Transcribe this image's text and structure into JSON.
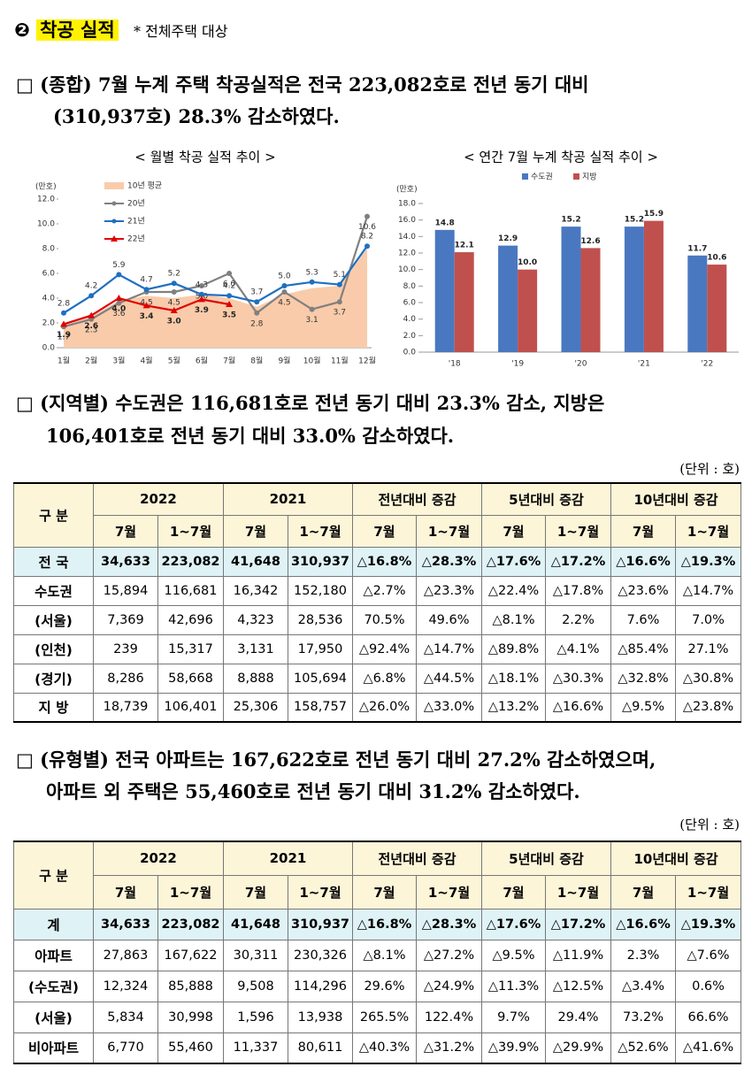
{
  "header": {
    "number": "❷",
    "title": "착공 실적",
    "note": "* 전체주택 대상"
  },
  "para1": [
    "□ (종합) 7월 누계 주택 착공실적은 전국 223,082호로 전년 동기 대비",
    "(310,937호) 28.3% 감소하였다."
  ],
  "chart_data": [
    {
      "type": "line",
      "title": "< 월별 착공 실적 추이 >",
      "y_label": "(만호)",
      "categories": [
        "1월",
        "2월",
        "3월",
        "4월",
        "5월",
        "6월",
        "7월",
        "8월",
        "9월",
        "10월",
        "11월",
        "12월"
      ],
      "ylim": [
        0,
        12
      ],
      "yticks": [
        {
          "value": 0,
          "label": "0.0"
        },
        {
          "value": 2,
          "label": "2.0"
        },
        {
          "value": 4,
          "label": "4.0"
        },
        {
          "value": 6,
          "label": "6.0"
        },
        {
          "value": 8,
          "label": "8.0"
        },
        {
          "value": 10,
          "label": "10.0"
        },
        {
          "value": 12,
          "label": "12.0"
        }
      ],
      "series": [
        {
          "name": "10년 평균",
          "style": "area",
          "color": "#f9cbaa",
          "values": [
            1.8,
            2.5,
            3.8,
            4.2,
            4.0,
            4.3,
            4.0,
            3.3,
            4.3,
            4.8,
            5.0,
            8.0
          ]
        },
        {
          "name": "20년",
          "style": "line",
          "marker": "circle",
          "color": "#808080",
          "values": [
            1.7,
            2.3,
            3.6,
            4.5,
            4.5,
            5.0,
            6.0,
            2.8,
            4.5,
            3.1,
            3.7,
            10.6
          ],
          "value_labels": [
            "1.7",
            "2.3",
            "3.6",
            "4.5",
            "4.5",
            "5.0",
            "6.0",
            "2.8",
            "4.5",
            "3.1",
            "3.7",
            "10.6"
          ]
        },
        {
          "name": "21년",
          "style": "line",
          "marker": "circle",
          "color": "#1f6fc0",
          "values": [
            2.8,
            4.2,
            5.9,
            4.7,
            5.2,
            4.3,
            4.2,
            3.7,
            5.0,
            5.3,
            5.1,
            8.2
          ],
          "value_labels": [
            "2.8",
            "4.2",
            "5.9",
            "4.7",
            "5.2",
            "4.3",
            "4.2",
            "3.7",
            "5.0",
            "5.3",
            "5.1",
            "8.2"
          ]
        },
        {
          "name": "22년",
          "style": "line",
          "marker": "triangle",
          "color": "#e00000",
          "values": [
            1.9,
            2.6,
            4.0,
            3.4,
            3.0,
            3.9,
            3.5,
            null,
            null,
            null,
            null,
            null
          ],
          "value_labels": [
            "1.9",
            "2.6",
            "4.0",
            "3.4",
            "3.0",
            "3.9",
            "3.5",
            null,
            null,
            null,
            null,
            null
          ]
        }
      ]
    },
    {
      "type": "bar",
      "title": "< 연간 7월 누계 착공 실적 추이 >",
      "y_label": "(만호)",
      "categories": [
        "'18",
        "'19",
        "'20",
        "'21",
        "'22"
      ],
      "ylim": [
        0,
        18
      ],
      "yticks": [
        {
          "value": 0,
          "label": "0.0"
        },
        {
          "value": 2,
          "label": "2.0"
        },
        {
          "value": 4,
          "label": "4.0"
        },
        {
          "value": 6,
          "label": "6.0"
        },
        {
          "value": 8,
          "label": "8.0"
        },
        {
          "value": 10,
          "label": "10.0"
        },
        {
          "value": 12,
          "label": "12.0"
        },
        {
          "value": 14,
          "label": "14.0"
        },
        {
          "value": 16,
          "label": "16.0"
        },
        {
          "value": 18,
          "label": "18.0"
        }
      ],
      "series": [
        {
          "name": "수도권",
          "color": "#4a78c0",
          "values": [
            14.8,
            12.9,
            15.2,
            15.2,
            11.7
          ],
          "value_labels": [
            "14.8",
            "12.9",
            "15.2",
            "15.2",
            "11.7"
          ]
        },
        {
          "name": "지방",
          "color": "#c0504d",
          "values": [
            12.1,
            10.0,
            12.6,
            15.9,
            10.6
          ],
          "value_labels": [
            "12.1",
            "10.0",
            "12.6",
            "15.9",
            "10.6"
          ]
        }
      ]
    }
  ],
  "para2": [
    "□ (지역별) 수도권은 116,681호로 전년 동기 대비 23.3% 감소, 지방은",
    "106,401호로 전년 동기 대비 33.0% 감소하였다."
  ],
  "table1": {
    "unit": "(단위 : 호)",
    "corner": "구 분",
    "groups": [
      "2022",
      "2021",
      "전년대비 증감",
      "5년대비 증감",
      "10년대비 증감"
    ],
    "sub": [
      "7월",
      "1~7월",
      "7월",
      "1~7월",
      "7월",
      "1~7월",
      "7월",
      "1~7월",
      "7월",
      "1~7월"
    ],
    "rows": [
      [
        "전 국",
        "34,633",
        "223,082",
        "41,648",
        "310,937",
        "△16.8%",
        "△28.3%",
        "△17.6%",
        "△17.2%",
        "△16.6%",
        "△19.3%"
      ],
      [
        "수도권",
        "15,894",
        "116,681",
        "16,342",
        "152,180",
        "△2.7%",
        "△23.3%",
        "△22.4%",
        "△17.8%",
        "△23.6%",
        "△14.7%"
      ],
      [
        "(서울)",
        "7,369",
        "42,696",
        "4,323",
        "28,536",
        "70.5%",
        "49.6%",
        "△8.1%",
        "2.2%",
        "7.6%",
        "7.0%"
      ],
      [
        "(인천)",
        "239",
        "15,317",
        "3,131",
        "17,950",
        "△92.4%",
        "△14.7%",
        "△89.8%",
        "△4.1%",
        "△85.4%",
        "27.1%"
      ],
      [
        "(경기)",
        "8,286",
        "58,668",
        "8,888",
        "105,694",
        "△6.8%",
        "△44.5%",
        "△18.1%",
        "△30.3%",
        "△32.8%",
        "△30.8%"
      ],
      [
        "지 방",
        "18,739",
        "106,401",
        "25,306",
        "158,757",
        "△26.0%",
        "△33.0%",
        "△13.2%",
        "△16.6%",
        "△9.5%",
        "△23.8%"
      ]
    ]
  },
  "para3": [
    "□ (유형별) 전국 아파트는 167,622호로 전년 동기 대비 27.2% 감소하였으며,",
    "아파트 외 주택은 55,460호로 전년 동기 대비 31.2% 감소하였다."
  ],
  "table2": {
    "unit": "(단위 : 호)",
    "corner": "구 분",
    "groups": [
      "2022",
      "2021",
      "전년대비 증감",
      "5년대비 증감",
      "10년대비 증감"
    ],
    "sub": [
      "7월",
      "1~7월",
      "7월",
      "1~7월",
      "7월",
      "1~7월",
      "7월",
      "1~7월",
      "7월",
      "1~7월"
    ],
    "rows": [
      [
        "계",
        "34,633",
        "223,082",
        "41,648",
        "310,937",
        "△16.8%",
        "△28.3%",
        "△17.6%",
        "△17.2%",
        "△16.6%",
        "△19.3%"
      ],
      [
        "아파트",
        "27,863",
        "167,622",
        "30,311",
        "230,326",
        "△8.1%",
        "△27.2%",
        "△9.5%",
        "△11.9%",
        "2.3%",
        "△7.6%"
      ],
      [
        "(수도권)",
        "12,324",
        "85,888",
        "9,508",
        "114,296",
        "29.6%",
        "△24.9%",
        "△11.3%",
        "△12.5%",
        "△3.4%",
        "0.6%"
      ],
      [
        "(서울)",
        "5,834",
        "30,998",
        "1,596",
        "13,938",
        "265.5%",
        "122.4%",
        "9.7%",
        "29.4%",
        "73.2%",
        "66.6%"
      ],
      [
        "비아파트",
        "6,770",
        "55,460",
        "11,337",
        "80,611",
        "△40.3%",
        "△31.2%",
        "△39.9%",
        "△29.9%",
        "△52.6%",
        "△41.6%"
      ]
    ]
  }
}
